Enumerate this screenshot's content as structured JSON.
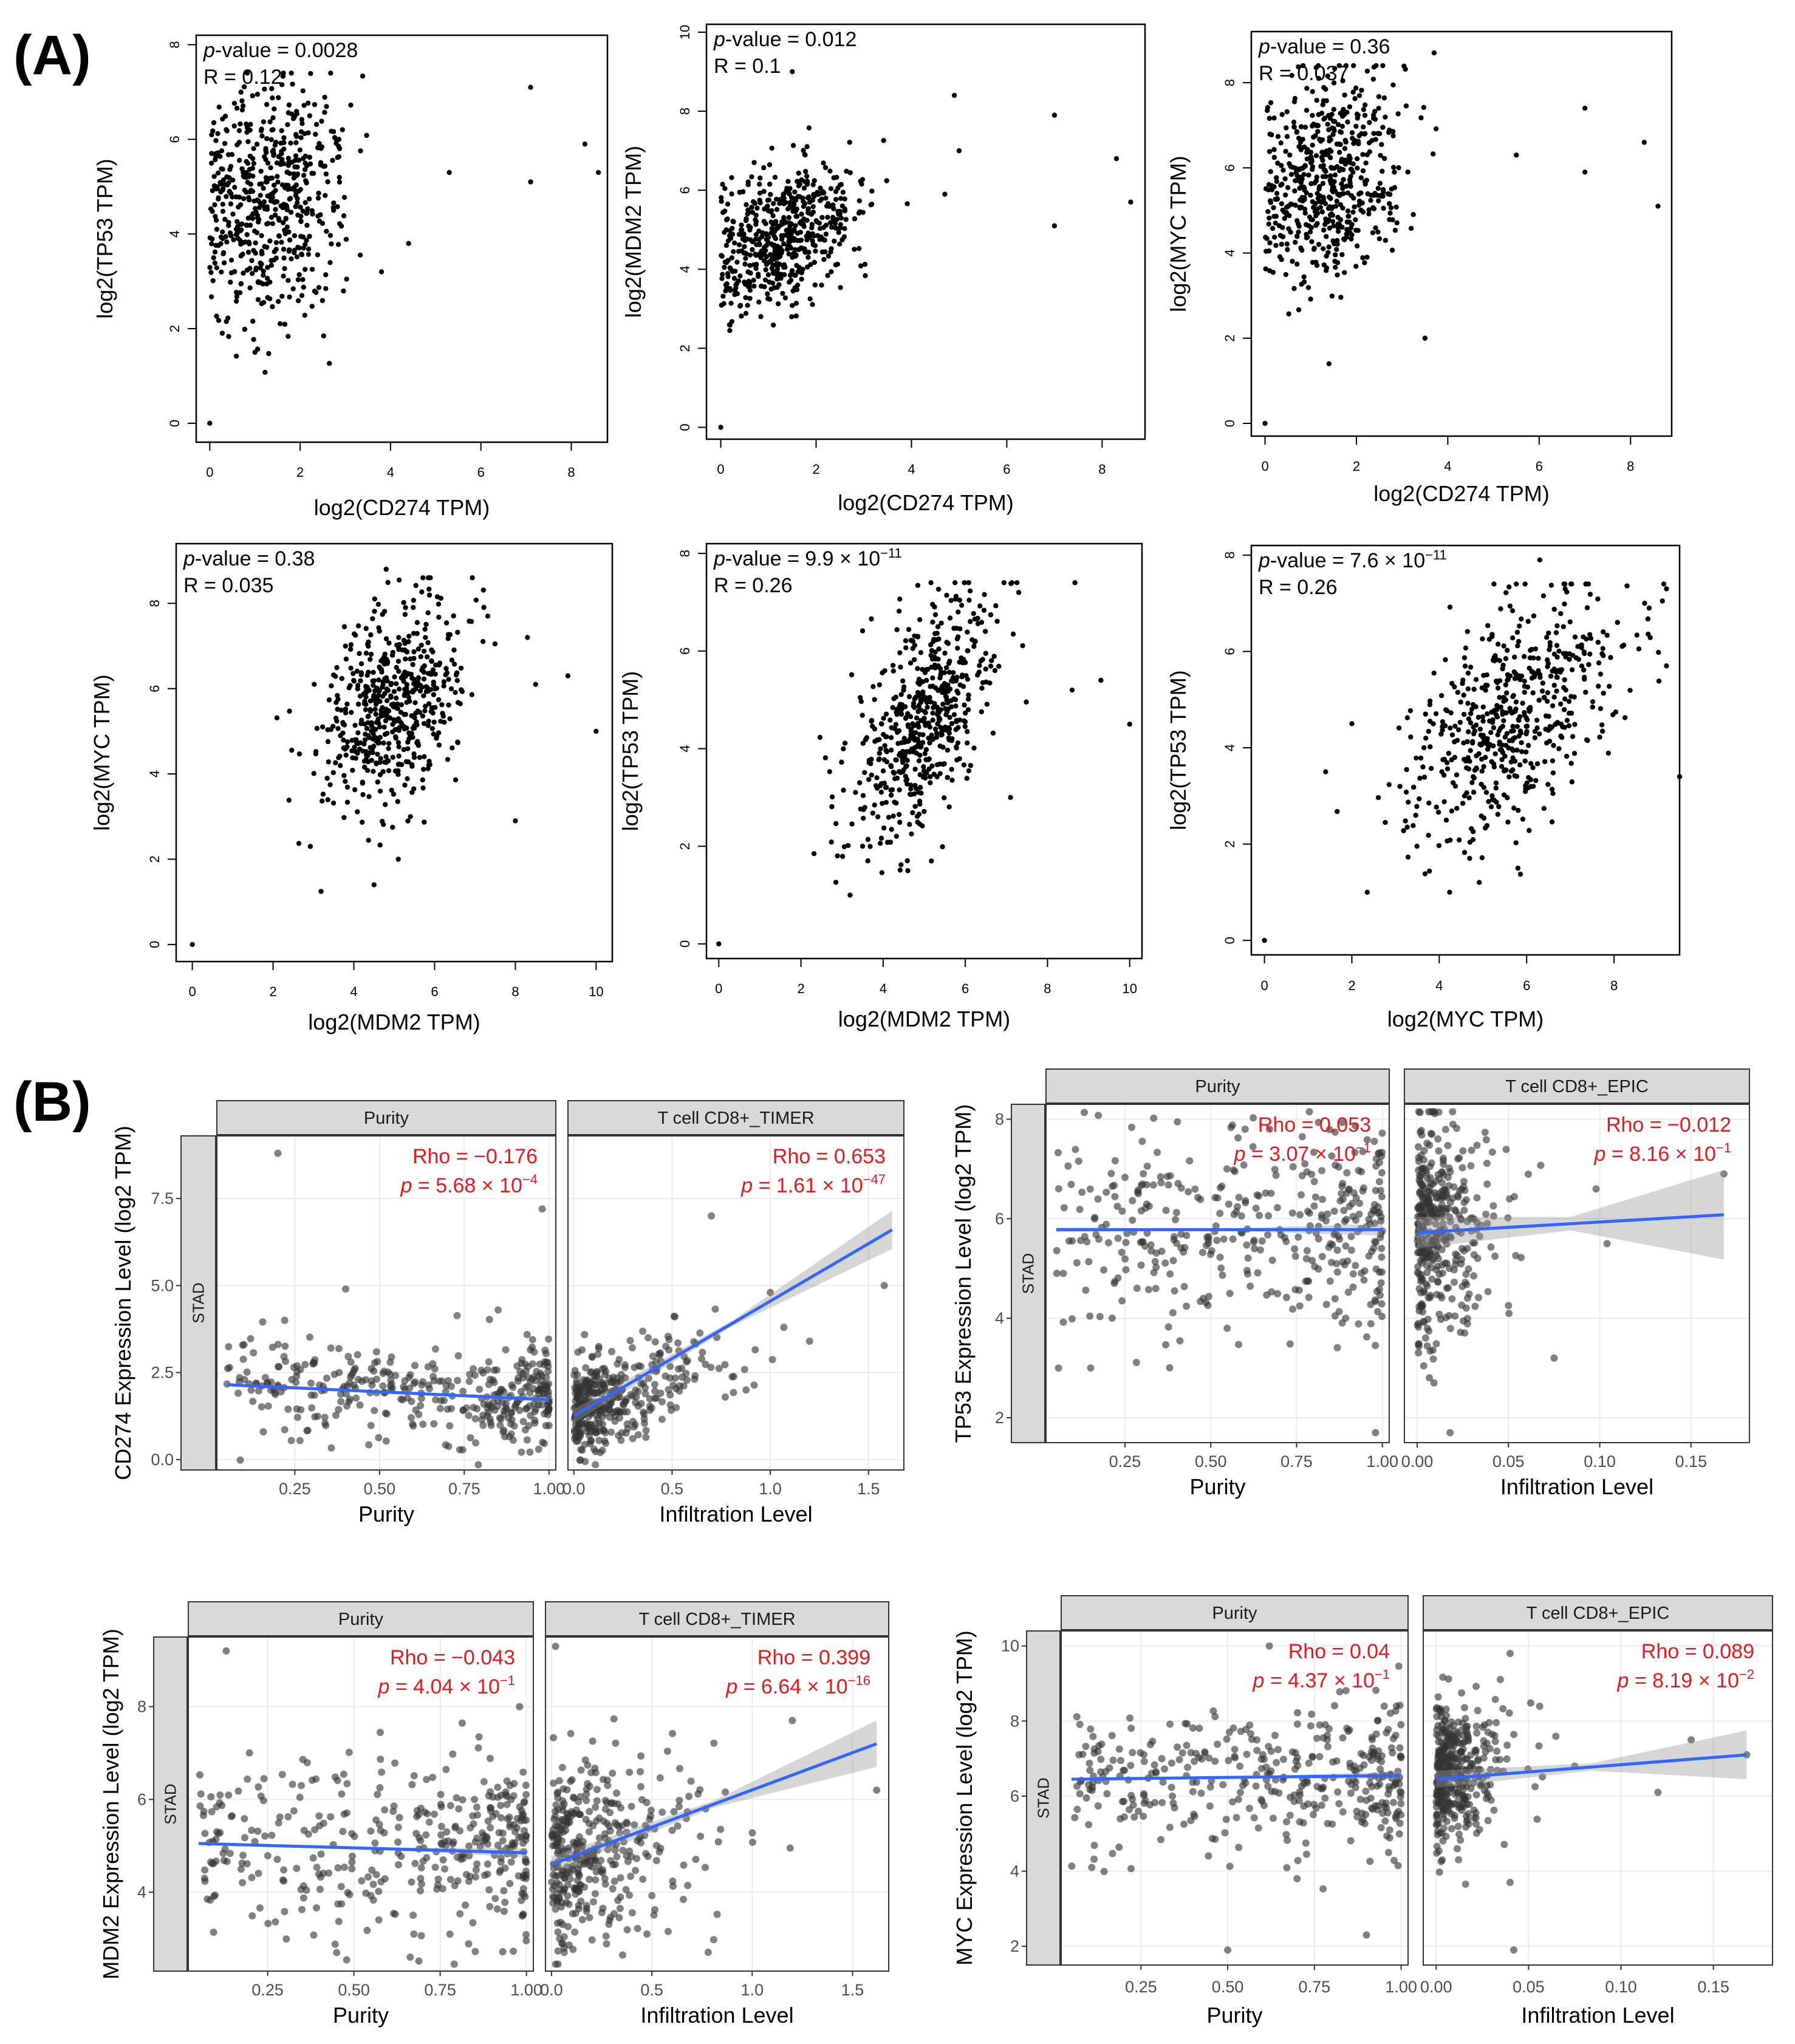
{
  "figure_labels": {
    "panel_a": "(A)",
    "panel_b": "(B)"
  },
  "chart_data": [
    {
      "id": "a1",
      "type": "scatter",
      "xlabel": "log2(CD274 TPM)",
      "ylabel": "log2(TP53 TPM)",
      "xlim": [
        -0.3,
        8.8
      ],
      "ylim": [
        -0.4,
        8.2
      ],
      "xticks": [
        0,
        2,
        4,
        6,
        8
      ],
      "yticks": [
        0,
        2,
        4,
        6,
        8
      ],
      "stat1": {
        "italic": "p",
        "text": "-value = 0.0028"
      },
      "stat2": {
        "text": "R = 0.12"
      },
      "cloud": {
        "n": 560,
        "mx": 1.3,
        "sx": 0.85,
        "my": 4.6,
        "sy": 1.3,
        "r": 0.15
      },
      "points": [
        [
          0,
          0
        ],
        [
          7.1,
          7.1
        ],
        [
          7.1,
          5.1
        ],
        [
          8.3,
          5.9
        ],
        [
          8.6,
          5.3
        ],
        [
          5.3,
          5.3
        ],
        [
          4.4,
          3.8
        ],
        [
          3.8,
          3.2
        ],
        [
          1.0,
          1.5
        ]
      ]
    },
    {
      "id": "a2",
      "type": "scatter",
      "xlabel": "log2(CD274 TPM)",
      "ylabel": "log2(MDM2 TPM)",
      "xlim": [
        -0.3,
        8.9
      ],
      "ylim": [
        -0.3,
        10.2
      ],
      "xticks": [
        0,
        2,
        4,
        6,
        8
      ],
      "yticks": [
        0,
        2,
        4,
        6,
        8,
        10
      ],
      "stat1": {
        "italic": "p",
        "text": "-value = 0.012"
      },
      "stat2": {
        "text": "R = 0.1"
      },
      "cloud": {
        "n": 560,
        "mx": 1.3,
        "sx": 0.85,
        "my": 4.8,
        "sy": 0.9,
        "r": 0.35
      },
      "points": [
        [
          0,
          0
        ],
        [
          7.0,
          7.9
        ],
        [
          7.0,
          5.1
        ],
        [
          8.3,
          6.8
        ],
        [
          8.6,
          5.7
        ],
        [
          5.0,
          7.0
        ],
        [
          4.7,
          5.9
        ],
        [
          4.9,
          8.4
        ],
        [
          1.5,
          9.0
        ]
      ]
    },
    {
      "id": "a3",
      "type": "scatter",
      "xlabel": "log2(CD274 TPM)",
      "ylabel": "log2(MYC TPM)",
      "xlim": [
        -0.3,
        8.9
      ],
      "ylim": [
        -0.3,
        9.2
      ],
      "xticks": [
        0,
        2,
        4,
        6,
        8
      ],
      "yticks": [
        0,
        2,
        4,
        6,
        8
      ],
      "stat1": {
        "italic": "p",
        "text": "-value = 0.36"
      },
      "stat2": {
        "text": "R = 0.037"
      },
      "cloud": {
        "n": 560,
        "mx": 1.3,
        "sx": 0.85,
        "my": 5.7,
        "sy": 1.2,
        "r": 0.15
      },
      "points": [
        [
          0,
          0
        ],
        [
          7.0,
          7.4
        ],
        [
          7.0,
          5.9
        ],
        [
          8.3,
          6.6
        ],
        [
          8.6,
          5.1
        ],
        [
          3.5,
          2.0
        ],
        [
          1.4,
          1.4
        ],
        [
          3.7,
          8.7
        ],
        [
          5.5,
          6.3
        ]
      ]
    },
    {
      "id": "a4",
      "type": "scatter",
      "xlabel": "log2(MDM2 TPM)",
      "ylabel": "log2(MYC TPM)",
      "xlim": [
        -0.4,
        10.4
      ],
      "ylim": [
        -0.4,
        9.4
      ],
      "xticks": [
        0,
        2,
        4,
        6,
        8,
        10
      ],
      "yticks": [
        0,
        2,
        4,
        6,
        8
      ],
      "stat1": {
        "italic": "p",
        "text": "-value = 0.38"
      },
      "stat2": {
        "text": "R = 0.035"
      },
      "cloud": {
        "n": 560,
        "mx": 5.0,
        "sx": 0.9,
        "my": 5.7,
        "sy": 1.2,
        "r": 0.35
      },
      "points": [
        [
          0,
          0
        ],
        [
          10.0,
          5.0
        ],
        [
          9.3,
          6.3
        ],
        [
          8.5,
          6.1
        ],
        [
          8.0,
          2.9
        ],
        [
          4.5,
          1.4
        ],
        [
          5.1,
          2.0
        ],
        [
          4.8,
          8.8
        ],
        [
          8.3,
          7.2
        ]
      ]
    },
    {
      "id": "a5",
      "type": "scatter",
      "xlabel": "log2(MDM2 TPM)",
      "ylabel": "log2(TP53 TPM)",
      "xlim": [
        -0.3,
        10.3
      ],
      "ylim": [
        -0.3,
        8.2
      ],
      "xticks": [
        0,
        2,
        4,
        6,
        8,
        10
      ],
      "yticks": [
        0,
        2,
        4,
        6,
        8
      ],
      "stat1": {
        "italic": "p",
        "text": "-value = 9.9 × 10",
        "sup": "−11"
      },
      "stat2": {
        "text": "R = 0.26"
      },
      "cloud": {
        "n": 560,
        "mx": 5.0,
        "sx": 0.9,
        "my": 4.6,
        "sy": 1.3,
        "r": 0.6
      },
      "points": [
        [
          0,
          0
        ],
        [
          10.0,
          4.5
        ],
        [
          9.3,
          5.4
        ],
        [
          8.6,
          5.2
        ],
        [
          7.1,
          3.0
        ],
        [
          4.6,
          1.5
        ],
        [
          3.5,
          2.0
        ],
        [
          7.3,
          7.2
        ]
      ]
    },
    {
      "id": "a6",
      "type": "scatter",
      "xlabel": "log2(MYC TPM)",
      "ylabel": "log2(TP53 TPM)",
      "xlim": [
        -0.3,
        9.5
      ],
      "ylim": [
        -0.3,
        8.2
      ],
      "xticks": [
        0,
        2,
        4,
        6,
        8
      ],
      "yticks": [
        0,
        2,
        4,
        6,
        8
      ],
      "stat1": {
        "italic": "p",
        "text": "-value = 7.6 × 10",
        "sup": "−11"
      },
      "stat2": {
        "text": "R = 0.26"
      },
      "cloud": {
        "n": 560,
        "mx": 5.6,
        "sx": 1.2,
        "my": 4.6,
        "sy": 1.3,
        "r": 0.55
      },
      "points": [
        [
          0,
          0
        ],
        [
          1.4,
          3.5
        ],
        [
          2.0,
          4.5
        ],
        [
          9.2,
          5.7
        ],
        [
          9.2,
          7.3
        ],
        [
          9.5,
          3.4
        ],
        [
          5.8,
          1.5
        ],
        [
          6.3,
          7.9
        ],
        [
          8.7,
          7.0
        ]
      ]
    },
    {
      "id": "b1",
      "type": "scatter_regression",
      "ylabel": "CD274 Expression Level (log2 TPM)",
      "strip_label": "STAD",
      "ylim": [
        -0.3,
        9.3
      ],
      "yticks": [
        0,
        2.5,
        5.0,
        7.5
      ],
      "ytick_labels": [
        "0.0",
        "2.5",
        "5.0",
        "7.5"
      ],
      "panels": [
        {
          "title": "Purity",
          "xlabel": "Purity",
          "xlim": [
            0.02,
            1.02
          ],
          "xticks": [
            0.25,
            0.5,
            0.75,
            1.0
          ],
          "xtick_labels": [
            "0.25",
            "0.50",
            "0.75",
            "1.00"
          ],
          "rho": "Rho = −0.176",
          "pval": "= 5.68 × 10",
          "sup": "−4",
          "fit": [
            [
              0.05,
              2.15
            ],
            [
              1.0,
              1.72
            ]
          ],
          "ci": 0.08,
          "cloud": {
            "n": 380,
            "mode": "purity",
            "base": 2.0,
            "slope": -0.45,
            "sd": 0.75
          },
          "points": [
            [
              0.2,
              8.8
            ],
            [
              0.98,
              7.2
            ],
            [
              0.1,
              3.3
            ],
            [
              0.4,
              4.9
            ],
            [
              0.85,
              4.3
            ],
            [
              0.22,
              4.0
            ]
          ]
        },
        {
          "title": "T cell CD8+_TIMER",
          "xlabel": "Infiltration Level",
          "xlim": [
            -0.03,
            1.68
          ],
          "xticks": [
            0,
            0.5,
            1.0,
            1.5
          ],
          "xtick_labels": [
            "0.0",
            "0.5",
            "1.0",
            "1.5"
          ],
          "rho": "Rho = 0.653",
          "pval": "= 1.61 × 10",
          "sup": "−47",
          "fit": [
            [
              0.0,
              1.25
            ],
            [
              1.62,
              6.6
            ]
          ],
          "ci": 0.55,
          "cloud": {
            "n": 380,
            "mode": "infil",
            "base": 1.3,
            "slope": 3.3,
            "sd": 0.7,
            "scale": 0.22
          },
          "points": [
            [
              1.58,
              5.0
            ],
            [
              1.0,
              4.8
            ],
            [
              0.7,
              7.0
            ],
            [
              1.2,
              3.4
            ]
          ]
        }
      ]
    },
    {
      "id": "b2",
      "type": "scatter_regression",
      "ylabel": "TP53 Expression Level (log2 TPM)",
      "strip_label": "STAD",
      "ylim": [
        1.5,
        8.3
      ],
      "yticks": [
        2,
        4,
        6,
        8
      ],
      "ytick_labels": [
        "2",
        "4",
        "6",
        "8"
      ],
      "panels": [
        {
          "title": "Purity",
          "xlabel": "Purity",
          "xlim": [
            0.02,
            1.02
          ],
          "xticks": [
            0.25,
            0.5,
            0.75,
            1.0
          ],
          "xtick_labels": [
            "0.25",
            "0.50",
            "0.75",
            "1.00"
          ],
          "rho": "Rho = 0.053",
          "pval": "= 3.07 × 10",
          "sup": "−1",
          "fit": [
            [
              0.05,
              5.78
            ],
            [
              1.0,
              5.78
            ]
          ],
          "ci": 0.12,
          "cloud": {
            "n": 380,
            "mode": "purity",
            "base": 5.75,
            "slope": 0.0,
            "sd": 1.05
          },
          "points": [
            [
              0.98,
              1.7
            ],
            [
              0.15,
              3.0
            ],
            [
              0.6,
              7.8
            ]
          ]
        },
        {
          "title": "T cell CD8+_EPIC",
          "xlabel": "Infiltration Level",
          "xlim": [
            -0.007,
            0.182
          ],
          "xticks": [
            0,
            0.05,
            0.1,
            0.15
          ],
          "xtick_labels": [
            "0.00",
            "0.05",
            "0.10",
            "0.15"
          ],
          "rho": "Rho = −0.012",
          "pval": "= 8.16 × 10",
          "sup": "−1",
          "fit": [
            [
              0.0,
              5.72
            ],
            [
              0.168,
              6.08
            ]
          ],
          "ci": 0.9,
          "cloud": {
            "n": 380,
            "mode": "infil",
            "base": 5.75,
            "slope": 0.0,
            "sd": 1.05,
            "scale": 0.013
          },
          "points": [
            [
              0.168,
              6.9
            ],
            [
              0.104,
              5.5
            ],
            [
              0.098,
              6.6
            ],
            [
              0.018,
              1.7
            ],
            [
              0.075,
              3.2
            ]
          ]
        }
      ]
    },
    {
      "id": "b3",
      "type": "scatter_regression",
      "ylabel": "MDM2 Expression Level (log2 TPM)",
      "strip_label": "STAD",
      "ylim": [
        2.3,
        9.5
      ],
      "yticks": [
        4,
        6,
        8
      ],
      "ytick_labels": [
        "4",
        "6",
        "8"
      ],
      "panels": [
        {
          "title": "Purity",
          "xlabel": "Purity",
          "xlim": [
            0.02,
            1.02
          ],
          "xticks": [
            0.25,
            0.5,
            0.75,
            1.0
          ],
          "xtick_labels": [
            "0.25",
            "0.50",
            "0.75",
            "1.00"
          ],
          "rho": "Rho = −0.043",
          "pval": "= 4.04 × 10",
          "sup": "−1",
          "fit": [
            [
              0.05,
              5.05
            ],
            [
              1.0,
              4.85
            ]
          ],
          "ci": 0.1,
          "cloud": {
            "n": 380,
            "mode": "purity",
            "base": 5.0,
            "slope": -0.2,
            "sd": 1.0
          },
          "points": [
            [
              0.13,
              9.2
            ],
            [
              0.98,
              8.0
            ],
            [
              0.45,
              2.7
            ]
          ]
        },
        {
          "title": "T cell CD8+_TIMER",
          "xlabel": "Infiltration Level",
          "xlim": [
            -0.03,
            1.68
          ],
          "xticks": [
            0,
            0.5,
            1.0,
            1.5
          ],
          "xtick_labels": [
            "0.0",
            "0.5",
            "1.0",
            "1.5"
          ],
          "rho": "Rho = 0.399",
          "pval": "= 6.64 × 10",
          "sup": "−16",
          "fit": [
            [
              0.0,
              4.6
            ],
            [
              1.62,
              7.2
            ]
          ],
          "ci": 0.5,
          "cloud": {
            "n": 380,
            "mode": "infil",
            "base": 4.6,
            "slope": 1.6,
            "sd": 1.0,
            "scale": 0.24
          },
          "points": [
            [
              1.62,
              6.2
            ],
            [
              0.02,
              9.3
            ],
            [
              1.2,
              7.7
            ]
          ]
        }
      ]
    },
    {
      "id": "b4",
      "type": "scatter_regression",
      "ylabel": "MYC Expression Level (log2 TPM)",
      "strip_label": "STAD",
      "ylim": [
        1.5,
        10.4
      ],
      "yticks": [
        2,
        4,
        6,
        8,
        10
      ],
      "ytick_labels": [
        "2",
        "4",
        "6",
        "8",
        "10"
      ],
      "panels": [
        {
          "title": "Purity",
          "xlabel": "Purity",
          "xlim": [
            0.02,
            1.02
          ],
          "xticks": [
            0.25,
            0.5,
            0.75,
            1.0
          ],
          "xtick_labels": [
            "0.25",
            "0.50",
            "0.75",
            "1.00"
          ],
          "rho": "Rho = 0.04",
          "pval": "= 4.37 × 10",
          "sup": "−1",
          "fit": [
            [
              0.05,
              6.45
            ],
            [
              1.0,
              6.55
            ]
          ],
          "ci": 0.1,
          "cloud": {
            "n": 380,
            "mode": "purity",
            "base": 6.45,
            "slope": 0.1,
            "sd": 0.95
          },
          "points": [
            [
              0.5,
              1.9
            ],
            [
              0.9,
              2.3
            ],
            [
              0.7,
              3.8
            ],
            [
              0.62,
              10.0
            ]
          ]
        },
        {
          "title": "T cell CD8+_EPIC",
          "xlabel": "Infiltration Level",
          "xlim": [
            -0.007,
            0.182
          ],
          "xticks": [
            0,
            0.05,
            0.1,
            0.15
          ],
          "xtick_labels": [
            "0.00",
            "0.05",
            "0.10",
            "0.15"
          ],
          "rho": "Rho = 0.089",
          "pval": "= 8.19 × 10",
          "sup": "−2",
          "fit": [
            [
              0.0,
              6.45
            ],
            [
              0.168,
              7.1
            ]
          ],
          "ci": 0.65,
          "cloud": {
            "n": 380,
            "mode": "infil",
            "base": 6.4,
            "slope": 3.0,
            "sd": 0.95,
            "scale": 0.013
          },
          "points": [
            [
              0.168,
              7.1
            ],
            [
              0.138,
              7.5
            ],
            [
              0.042,
              1.9
            ],
            [
              0.04,
              3.7
            ],
            [
              0.04,
              9.8
            ],
            [
              0.12,
              6.1
            ],
            [
              0.075,
              6.8
            ]
          ]
        }
      ]
    }
  ]
}
